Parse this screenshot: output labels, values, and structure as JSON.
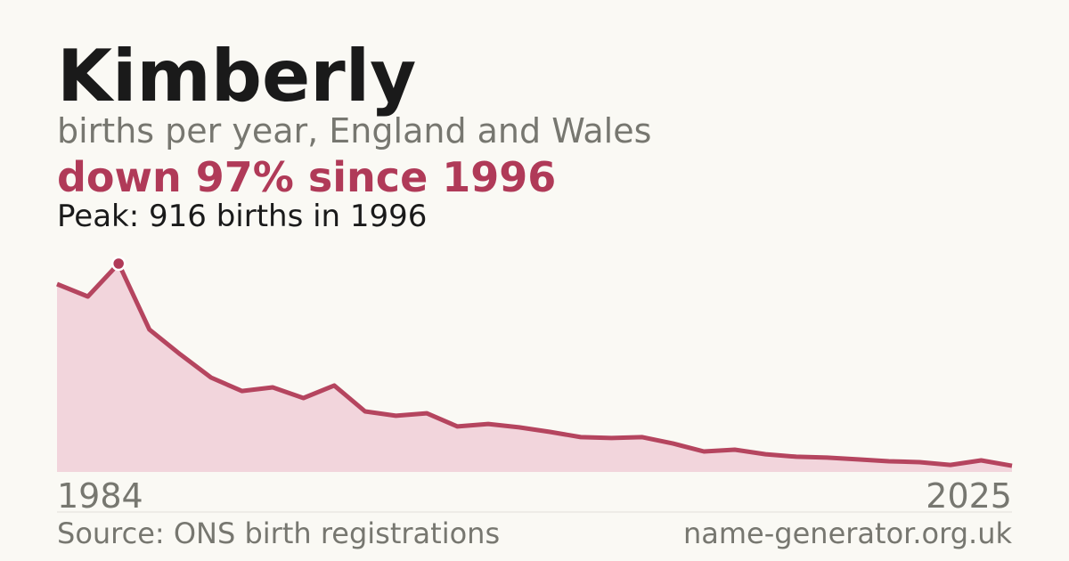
{
  "chart_data": {
    "type": "area",
    "title": "Kimberly",
    "subtitle": "births per year, England and Wales",
    "headline": "down 97% since 1996",
    "peak_note": "Peak: 916 births in 1996",
    "source": "Source: ONS birth registrations",
    "site": "name-generator.org.uk",
    "categories": [
      "1984",
      null,
      null,
      null,
      null,
      null,
      null,
      null,
      null,
      null,
      null,
      null,
      null,
      null,
      null,
      null,
      null,
      null,
      null,
      null,
      null,
      null,
      null,
      null,
      null,
      null,
      null,
      null,
      null,
      null,
      null,
      "2025"
    ],
    "values": [
      826,
      771,
      916,
      626,
      517,
      415,
      356,
      372,
      325,
      380,
      266,
      247,
      258,
      200,
      211,
      196,
      176,
      153,
      149,
      153,
      125,
      90,
      98,
      78,
      67,
      63,
      55,
      47,
      43,
      31,
      51,
      27
    ],
    "color": "#b5455f",
    "fill": "#f2d5dc",
    "ylim": [
      0,
      916
    ]
  }
}
